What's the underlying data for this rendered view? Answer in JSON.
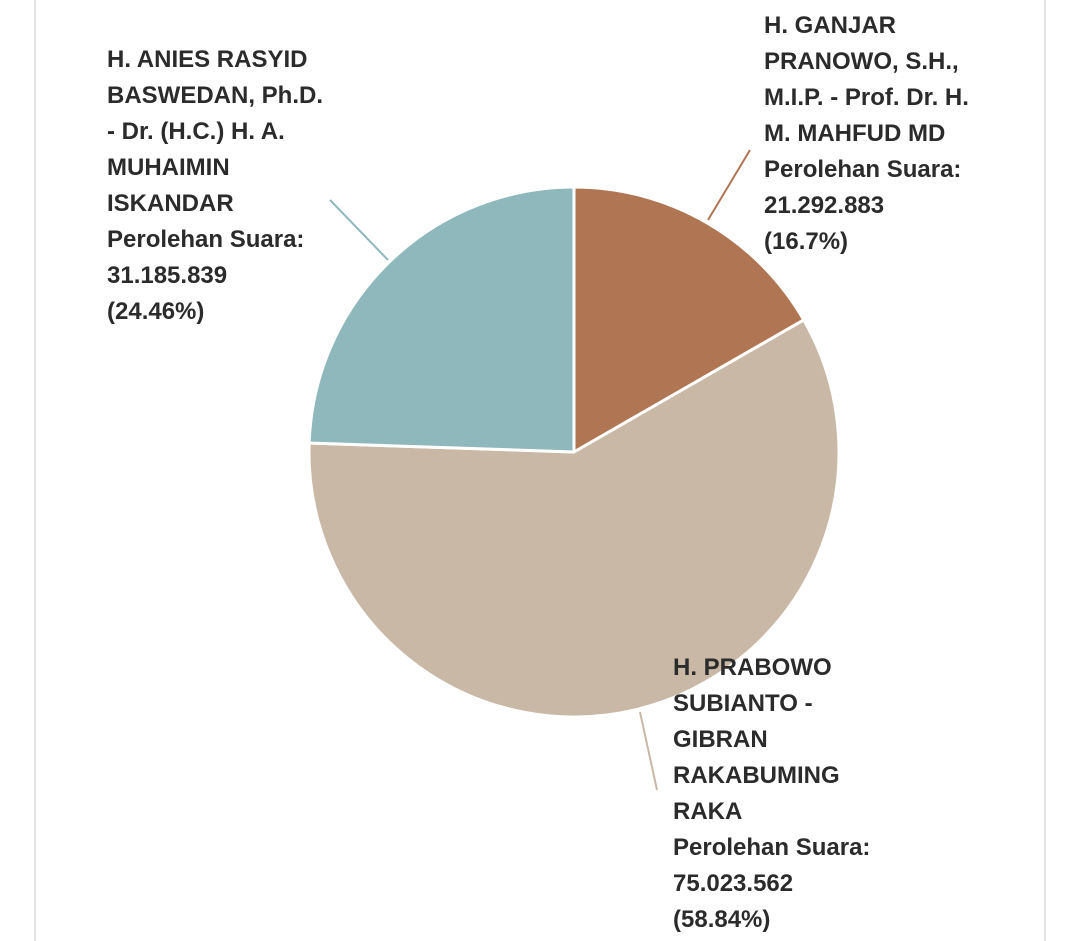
{
  "chart_data": {
    "type": "pie",
    "categories": [
      "H. GANJAR PRANOWO, S.H., M.I.P. - Prof. Dr. H. M. MAHFUD MD",
      "H. PRABOWO SUBIANTO - GIBRAN RAKABUMING RAKA",
      "H. ANIES RASYID BASWEDAN, Ph.D. - Dr. (H.C.) H. A. MUHAIMIN ISKANDAR"
    ],
    "value_caption": "Perolehan Suara:",
    "values": [
      21292883,
      75023562,
      31185839
    ],
    "value_labels": [
      "21.292.883",
      "75.023.562",
      "31.185.839"
    ],
    "percents": [
      16.7,
      58.84,
      24.46
    ],
    "percent_labels": [
      "(16.7%)",
      "(58.84%)",
      "(24.46%)"
    ],
    "colors": [
      "#b07552",
      "#c9b8a6",
      "#8fb8bd"
    ]
  }
}
